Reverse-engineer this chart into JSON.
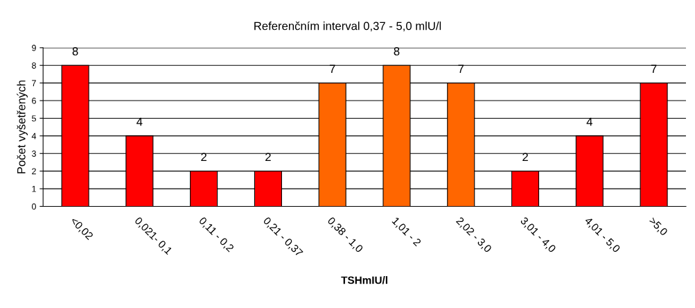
{
  "chart_data": {
    "type": "bar",
    "title": "Referenčním interval 0,37 - 5,0 mlU/l",
    "xlabel": "TSHmIU/l",
    "ylabel": "Počet vyšetřených",
    "categories": [
      "<0,02",
      "0,021- 0,1",
      "0,11 - 0,2",
      "0,21 - 0,37",
      "0,38 - 1,0",
      "1,01 - 2",
      "2,02 - 3,0",
      "3,01 - 4,0",
      "4,01 - 5,0",
      ">5,0"
    ],
    "values": [
      8,
      4,
      2,
      2,
      7,
      8,
      7,
      2,
      4,
      7
    ],
    "colors": [
      "#ff0000",
      "#ff0000",
      "#ff0000",
      "#ff0000",
      "#ff6600",
      "#ff6600",
      "#ff6600",
      "#ff0000",
      "#ff0000",
      "#ff0000"
    ],
    "ylim": [
      0,
      9
    ],
    "yticks": [
      0,
      1,
      2,
      3,
      4,
      5,
      6,
      7,
      8,
      9
    ],
    "grid": "y",
    "data_labels": true
  }
}
